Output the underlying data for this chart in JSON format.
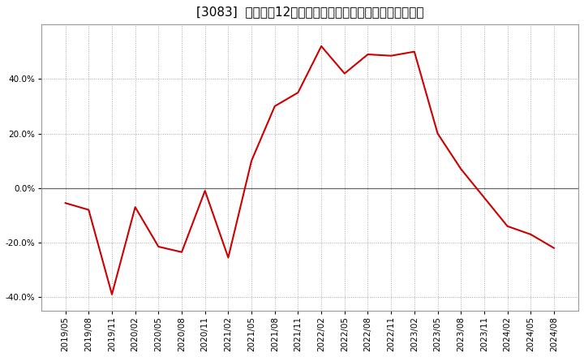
{
  "title": "[3083]  売上高の12か月移動合計の対前年同期増減率の推移",
  "line_color": "#cc0000",
  "background_color": "#ffffff",
  "grid_color": "#aaaaaa",
  "x_labels": [
    "2019/05",
    "2019/08",
    "2019/11",
    "2020/02",
    "2020/05",
    "2020/08",
    "2020/11",
    "2021/02",
    "2021/05",
    "2021/08",
    "2021/11",
    "2022/02",
    "2022/05",
    "2022/08",
    "2022/11",
    "2023/02",
    "2023/05",
    "2023/08",
    "2023/11",
    "2024/02",
    "2024/05",
    "2024/08"
  ],
  "y_values": [
    -5.5,
    -8.0,
    -39.0,
    -7.0,
    -21.5,
    -23.5,
    -1.0,
    -25.5,
    10.0,
    30.0,
    35.0,
    52.0,
    42.0,
    49.0,
    48.5,
    50.0,
    20.0,
    7.0,
    -3.5,
    -14.0,
    -17.0,
    -22.0
  ],
  "ylim": [
    -45,
    60
  ],
  "yticks": [
    -40.0,
    -20.0,
    0.0,
    20.0,
    40.0
  ],
  "title_fontsize": 11,
  "tick_fontsize": 7.5,
  "figsize": [
    7.2,
    4.4
  ],
  "dpi": 100
}
